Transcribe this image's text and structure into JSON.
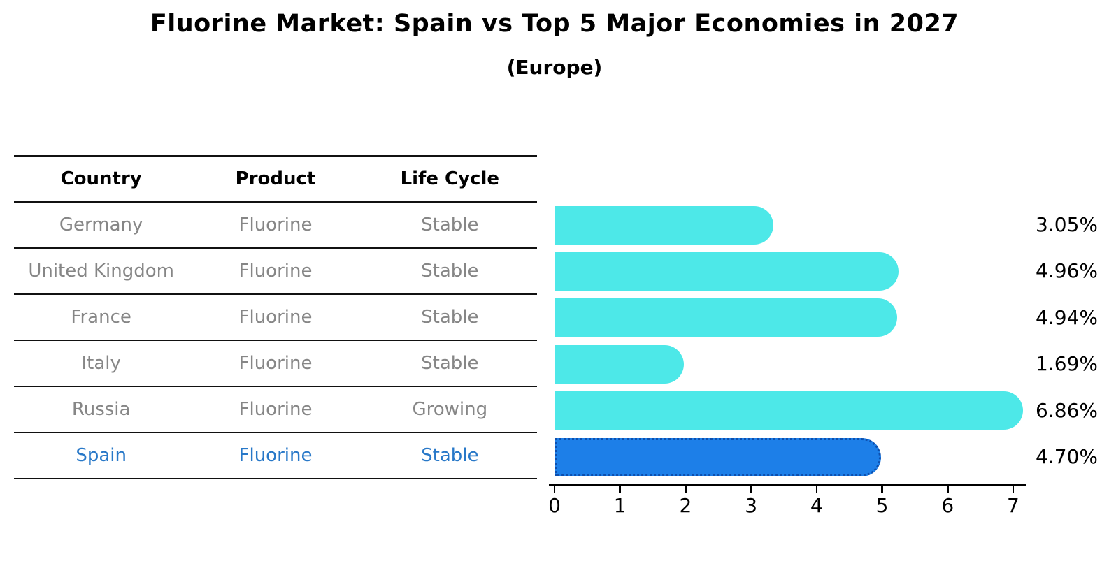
{
  "title": "Fluorine Market: Spain vs Top 5 Major Economies in 2027",
  "subtitle": "(Europe)",
  "table": {
    "headers": [
      "Country",
      "Product",
      "Life Cycle"
    ],
    "rows": [
      {
        "country": "Germany",
        "product": "Fluorine",
        "life_cycle": "Stable",
        "highlight": false
      },
      {
        "country": "United Kingdom",
        "product": "Fluorine",
        "life_cycle": "Stable",
        "highlight": false
      },
      {
        "country": "France",
        "product": "Fluorine",
        "life_cycle": "Stable",
        "highlight": false
      },
      {
        "country": "Italy",
        "product": "Fluorine",
        "life_cycle": "Stable",
        "highlight": false
      },
      {
        "country": "Russia",
        "product": "Fluorine",
        "life_cycle": "Growing",
        "highlight": false
      },
      {
        "country": "Spain",
        "product": "Fluorine",
        "life_cycle": "Stable",
        "highlight": true
      }
    ]
  },
  "chart_data": {
    "type": "bar",
    "orientation": "horizontal",
    "categories": [
      "Germany",
      "United Kingdom",
      "France",
      "Italy",
      "Russia",
      "Spain"
    ],
    "values": [
      3.05,
      4.96,
      4.94,
      1.69,
      6.86,
      4.7
    ],
    "value_labels": [
      "3.05%",
      "4.96%",
      "4.94%",
      "1.69%",
      "6.86%",
      "4.70%"
    ],
    "xlim": [
      0,
      7
    ],
    "xticks": [
      "0",
      "1",
      "2",
      "3",
      "4",
      "5",
      "6",
      "7"
    ],
    "grid": false,
    "legend": "none",
    "highlight_index": 5,
    "colors": {
      "bar_default": "#4de8e8",
      "bar_highlight": "#1d7fe8",
      "bar_highlight_border": "#0d4fae",
      "highlight_text": "#2878c8",
      "table_text": "#868686",
      "axis_text": "#000000"
    }
  }
}
